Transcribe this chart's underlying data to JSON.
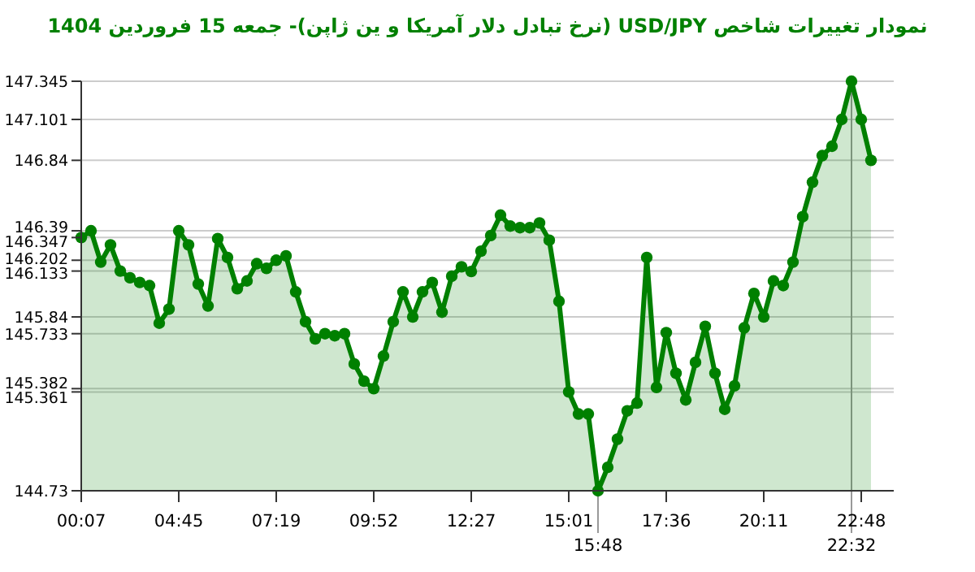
{
  "chart_data": {
    "type": "area",
    "title": "نمودار تغییرات شاخص USD/JPY (نرخ تبادل دلار آمریکا و ین ژاپن)- جمعه  15 فروردین 1404",
    "color": "#008000",
    "marker": "circle",
    "grid": "y",
    "categories": [
      "00:07",
      null,
      null,
      null,
      null,
      null,
      null,
      null,
      null,
      null,
      "04:45",
      null,
      null,
      null,
      null,
      null,
      null,
      null,
      null,
      null,
      "07:19",
      null,
      null,
      null,
      null,
      null,
      null,
      null,
      null,
      null,
      "09:52",
      null,
      null,
      null,
      null,
      null,
      null,
      null,
      null,
      null,
      "12:27",
      null,
      null,
      null,
      null,
      null,
      null,
      null,
      null,
      null,
      "15:01",
      null,
      null,
      null,
      null,
      null,
      null,
      null,
      null,
      null,
      "17:36",
      null,
      null,
      null,
      null,
      null,
      null,
      null,
      null,
      null,
      "20:11",
      null,
      null,
      null,
      null,
      null,
      null,
      null,
      null,
      null,
      "22:48",
      null
    ],
    "values": [
      146.347,
      146.39,
      146.19,
      146.3,
      146.133,
      146.09,
      146.06,
      146.04,
      145.8,
      145.89,
      146.39,
      146.3,
      146.05,
      145.91,
      146.34,
      146.22,
      146.02,
      146.07,
      146.18,
      146.15,
      146.202,
      146.23,
      146.0,
      145.81,
      145.7,
      145.733,
      145.72,
      145.733,
      145.54,
      145.43,
      145.382,
      145.59,
      145.81,
      146.0,
      145.84,
      146.0,
      146.06,
      145.87,
      146.1,
      146.16,
      146.13,
      146.26,
      146.36,
      146.49,
      146.42,
      146.41,
      146.41,
      146.44,
      146.33,
      145.94,
      145.361,
      145.22,
      145.22,
      144.73,
      144.88,
      145.06,
      145.24,
      145.29,
      146.22,
      145.39,
      145.74,
      145.48,
      145.31,
      145.55,
      145.78,
      145.48,
      145.25,
      145.4,
      145.77,
      145.99,
      145.84,
      146.07,
      146.04,
      146.19,
      146.48,
      146.7,
      146.87,
      146.93,
      147.101,
      147.345,
      147.101,
      146.84
    ],
    "ylim": [
      144.73,
      147.345
    ],
    "yticks": [
      147.345,
      147.101,
      146.84,
      146.39,
      146.347,
      146.202,
      146.133,
      145.84,
      145.733,
      145.382,
      145.361,
      144.73
    ],
    "annotations": [
      {
        "text": "15:48",
        "y": 144.73
      },
      {
        "text": "22:32",
        "y": 147.345
      }
    ]
  }
}
